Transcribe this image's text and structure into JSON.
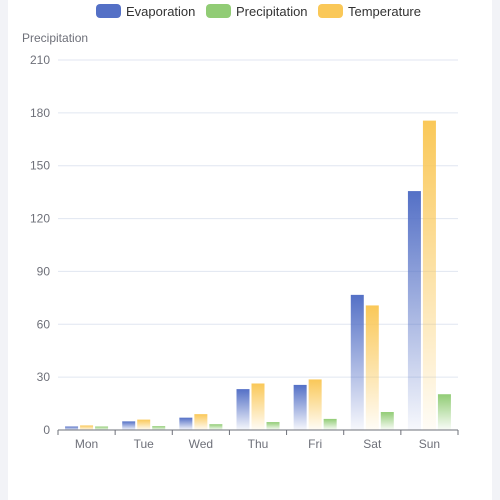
{
  "chart_data": {
    "type": "bar",
    "ylabel": "Precipitation",
    "ylim": [
      0,
      210
    ],
    "yticks": [
      0,
      30,
      60,
      90,
      120,
      150,
      180,
      210
    ],
    "categories": [
      "Mon",
      "Tue",
      "Wed",
      "Thu",
      "Fri",
      "Sat",
      "Sun"
    ],
    "series": [
      {
        "name": "Evaporation",
        "color": "#5470c6",
        "values": [
          2,
          4.9,
          7,
          23.2,
          25.6,
          76.7,
          135.6
        ]
      },
      {
        "name": "Temperature",
        "color": "#fac858",
        "values": [
          2.6,
          5.9,
          9,
          26.4,
          28.7,
          70.7,
          175.6
        ]
      },
      {
        "name": "Precipitation",
        "color": "#91cc75",
        "values": [
          2,
          2.2,
          3.3,
          4.5,
          6.3,
          10.2,
          20.3
        ]
      }
    ],
    "legend": {
      "position": "top-center",
      "items": [
        "Evaporation",
        "Precipitation",
        "Temperature"
      ]
    },
    "grid": "horizontal"
  }
}
